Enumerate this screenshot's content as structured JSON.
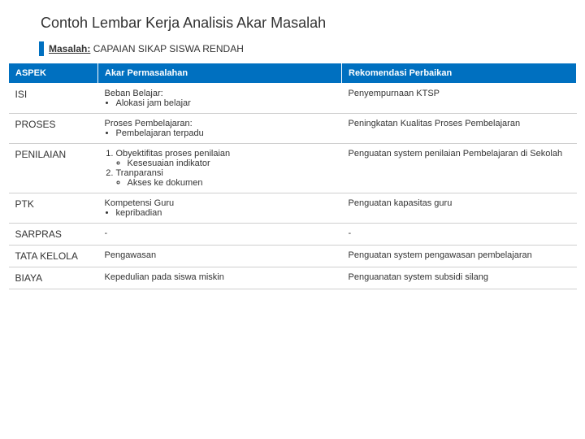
{
  "title": "Contoh Lembar Kerja Analisis Akar Masalah",
  "subtitle_label": "Masalah:",
  "subtitle_value": "CAPAIAN SIKAP SISWA RENDAH",
  "table": {
    "headers": {
      "aspek": "ASPEK",
      "akar": "Akar Permasalahan",
      "rekom": "Rekomendasi Perbaikan"
    },
    "rows": [
      {
        "aspek": "ISI",
        "akar_title": "Beban Belajar:",
        "akar_bullets": [
          "Alokasi jam belajar"
        ],
        "rekom": "Penyempurnaan KTSP"
      },
      {
        "aspek": "PROSES",
        "akar_title": "Proses Pembelajaran:",
        "akar_bullets": [
          "Pembelajaran terpadu"
        ],
        "rekom": "Peningkatan Kualitas Proses Pembelajaran"
      },
      {
        "aspek": "PENILAIAN",
        "akar_num": [
          {
            "t": "Obyektifitas proses penilaian",
            "sub": [
              "Kesesuaian indikator"
            ]
          },
          {
            "t": "Tranparansi",
            "sub": [
              "Akses ke dokumen"
            ]
          }
        ],
        "rekom": "Penguatan system penilaian Pembelajaran di Sekolah"
      },
      {
        "aspek": "PTK",
        "akar_title": "Kompetensi Guru",
        "akar_bullets": [
          "kepribadian"
        ],
        "rekom": "Penguatan kapasitas guru"
      },
      {
        "aspek": "SARPRAS",
        "akar_plain": "-",
        "rekom": "-"
      },
      {
        "aspek": "TATA KELOLA",
        "akar_plain": "Pengawasan",
        "rekom": "Penguatan system pengawasan pembelajaran"
      },
      {
        "aspek": "BIAYA",
        "akar_plain": "Kepedulian pada siswa miskin",
        "rekom": "Penguanatan system subsidi silang"
      }
    ]
  },
  "colors": {
    "header_bg": "#0070c0",
    "header_fg": "#ffffff",
    "text": "#333333",
    "row_border": "#cfcfcf"
  }
}
